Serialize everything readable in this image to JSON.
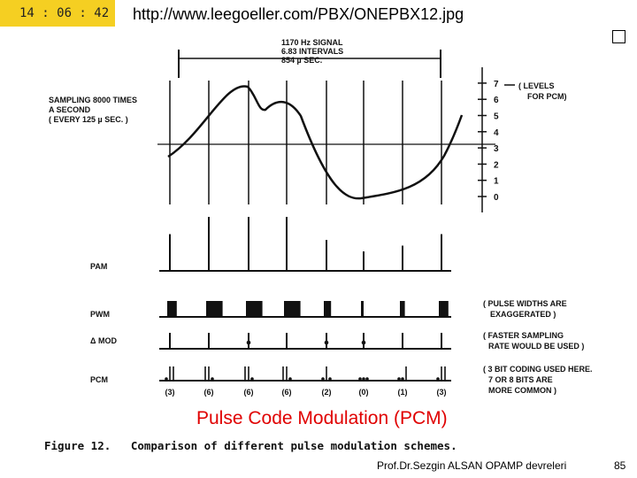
{
  "header": {
    "time": "14 : 06 : 42",
    "url": "http://www.leegoeller.com/PBX/ONEPBX12.jpg"
  },
  "diagram": {
    "signal_label_lines": [
      "1170 Hz SIGNAL",
      "6.83 INTERVALS",
      "854 µ SEC."
    ],
    "sampling_label_lines": [
      "SAMPLING 8000 TIMES",
      "A SECOND",
      "( EVERY 125 µ SEC. )"
    ],
    "levels_label_lines": [
      "( LEVELS",
      "FOR PCM)"
    ],
    "level_numbers": [
      "7",
      "6",
      "5",
      "4",
      "3",
      "2",
      "1",
      "0"
    ],
    "row_labels": [
      "PAM",
      "PWM",
      "Δ MOD",
      "PCM"
    ],
    "pwm_note_lines": [
      "( PULSE WIDTHS ARE",
      "EXAGGERATED )"
    ],
    "dmod_note_lines": [
      "( FASTER SAMPLING",
      "RATE WOULD BE USED )"
    ],
    "pcm_note_lines": [
      "( 3 BIT CODING USED HERE.",
      "7 OR 8 BITS ARE",
      "MORE COMMON )"
    ],
    "pcm_codes": [
      "(3)",
      "(6)",
      "(6)",
      "(6)",
      "(2)",
      "(0)",
      "(1)",
      "(3)"
    ],
    "samples": [
      3,
      6,
      6,
      6,
      2,
      0,
      1,
      3
    ]
  },
  "title": "Pulse Code Modulation (PCM)",
  "caption": "Figure 12.   Comparison of different pulse modulation schemes.",
  "footer": {
    "author": "Prof.Dr.Sezgin ALSAN  OPAMP devreleri",
    "page": "85"
  }
}
